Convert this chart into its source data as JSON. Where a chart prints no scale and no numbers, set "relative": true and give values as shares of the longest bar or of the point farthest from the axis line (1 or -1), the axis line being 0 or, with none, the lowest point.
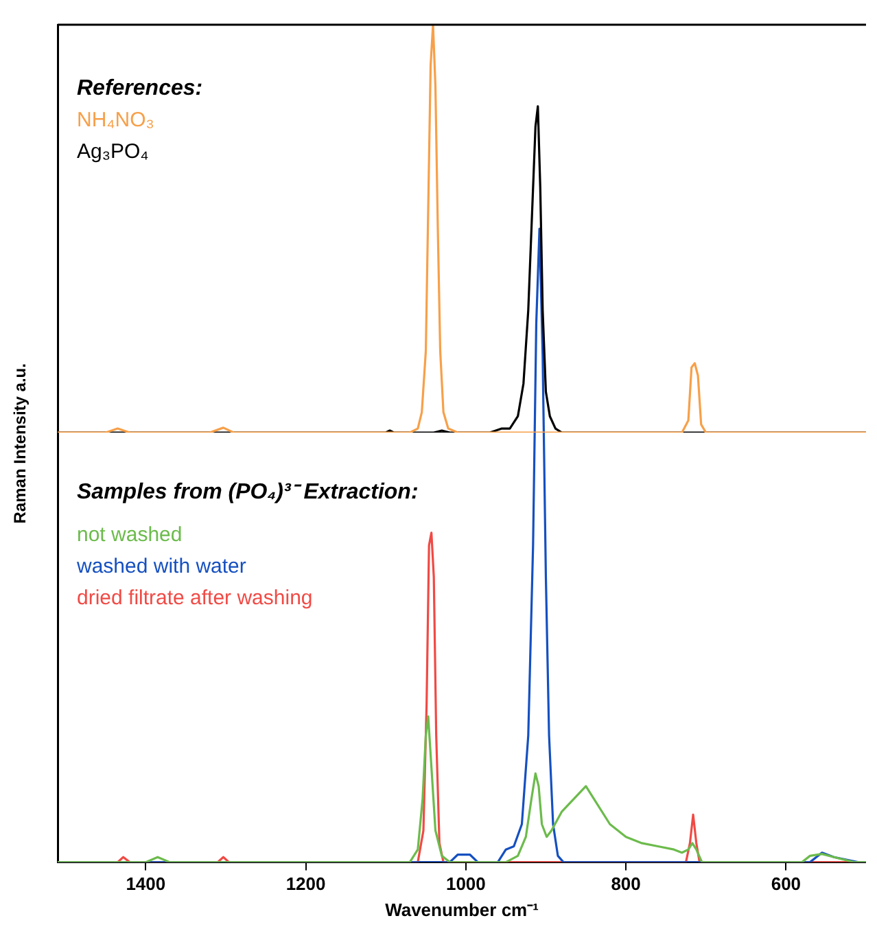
{
  "chart_data": [
    {
      "type": "line",
      "title": "References:",
      "relative": true,
      "xlim": [
        1510,
        500
      ],
      "xticks": [
        1400,
        1200,
        1000,
        800,
        600
      ],
      "tick_labels": false,
      "legend": "top left",
      "series": [
        {
          "name": "NH₄NO₃",
          "color": "#f7a04a",
          "x": [
            1510,
            1450,
            1435,
            1420,
            1320,
            1303,
            1290,
            1070,
            1060,
            1055,
            1050,
            1047,
            1044,
            1041,
            1038,
            1035,
            1032,
            1028,
            1022,
            1010,
            730,
            722,
            718,
            714,
            710,
            706,
            700,
            500
          ],
          "values": [
            0,
            0,
            0.01,
            0,
            0,
            0.012,
            0,
            0,
            0.01,
            0.05,
            0.2,
            0.55,
            0.9,
            1,
            0.85,
            0.5,
            0.2,
            0.05,
            0.01,
            0,
            0,
            0.03,
            0.16,
            0.17,
            0.14,
            0.02,
            0,
            0
          ]
        },
        {
          "name": "Ag₃PO₄",
          "color": "#000000",
          "x": [
            1510,
            1100,
            1095,
            1090,
            1040,
            1030,
            1020,
            970,
            955,
            945,
            935,
            928,
            922,
            917,
            913,
            910,
            907,
            904,
            900,
            895,
            888,
            880,
            500
          ],
          "values": [
            0,
            0,
            0.005,
            0,
            0,
            0.005,
            0,
            0,
            0.01,
            0.01,
            0.04,
            0.12,
            0.3,
            0.55,
            0.75,
            0.8,
            0.6,
            0.3,
            0.1,
            0.04,
            0.01,
            0,
            0
          ]
        }
      ]
    },
    {
      "type": "line",
      "title": "Samples from (PO₄)³⁻ Extraction:",
      "xlabel": "Wavenumber cm⁻¹",
      "ylabel": "Raman Intensity a.u.",
      "relative": true,
      "xlim": [
        1510,
        500
      ],
      "xticks": [
        1400,
        1200,
        1000,
        800,
        600
      ],
      "legend": "left",
      "series": [
        {
          "name": "not washed",
          "color": "#6cbb4c",
          "x": [
            1510,
            1400,
            1385,
            1370,
            1070,
            1060,
            1054,
            1050,
            1047,
            1043,
            1038,
            1030,
            1020,
            950,
            935,
            925,
            918,
            913,
            909,
            905,
            899,
            893,
            880,
            865,
            850,
            840,
            820,
            800,
            780,
            760,
            740,
            730,
            722,
            717,
            712,
            705,
            580,
            570,
            555,
            540,
            515,
            500
          ],
          "values": [
            0,
            0,
            0.008,
            0,
            0,
            0.02,
            0.1,
            0.2,
            0.23,
            0.15,
            0.05,
            0.01,
            0,
            0,
            0.01,
            0.04,
            0.1,
            0.14,
            0.12,
            0.06,
            0.04,
            0.05,
            0.08,
            0.1,
            0.12,
            0.1,
            0.06,
            0.04,
            0.03,
            0.025,
            0.02,
            0.015,
            0.02,
            0.03,
            0.02,
            0,
            0,
            0.01,
            0.013,
            0.008,
            0,
            0
          ]
        },
        {
          "name": "washed with water",
          "color": "#1550c0",
          "x": [
            1510,
            1020,
            1010,
            995,
            985,
            960,
            950,
            940,
            930,
            922,
            916,
            912,
            908,
            904,
            900,
            896,
            891,
            885,
            878,
            570,
            555,
            540,
            510,
            500
          ],
          "values": [
            0,
            0,
            0.012,
            0.012,
            0,
            0,
            0.02,
            0.025,
            0.06,
            0.2,
            0.5,
            0.85,
            1,
            0.8,
            0.45,
            0.2,
            0.06,
            0.01,
            0,
            0,
            0.015,
            0.008,
            0,
            0
          ]
        },
        {
          "name": "dried filtrate after washing",
          "color": "#f04a45",
          "x": [
            1510,
            1435,
            1428,
            1420,
            1310,
            1303,
            1296,
            1060,
            1053,
            1049,
            1046,
            1043,
            1040,
            1037,
            1033,
            1028,
            725,
            720,
            716,
            712,
            708,
            500
          ],
          "values": [
            0,
            0,
            0.008,
            0,
            0,
            0.008,
            0,
            0,
            0.05,
            0.25,
            0.5,
            0.52,
            0.45,
            0.2,
            0.03,
            0,
            0,
            0.03,
            0.075,
            0.03,
            0,
            0
          ]
        }
      ]
    }
  ]
}
